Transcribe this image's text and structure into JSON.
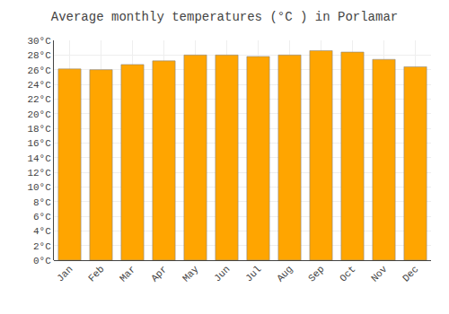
{
  "chart_data": {
    "type": "bar",
    "title": "Average monthly temperatures (°C ) in Porlamar",
    "categories": [
      "Jan",
      "Feb",
      "Mar",
      "Apr",
      "May",
      "Jun",
      "Jul",
      "Aug",
      "Sep",
      "Oct",
      "Nov",
      "Dec"
    ],
    "values": [
      26.1,
      26.0,
      26.7,
      27.2,
      28.0,
      28.0,
      27.8,
      28.0,
      28.6,
      28.4,
      27.4,
      26.4
    ],
    "color": "#FFA500",
    "ylim": [
      0,
      30
    ],
    "yticks": [
      {
        "value": 0,
        "label": "0°C"
      },
      {
        "value": 2,
        "label": "2°C"
      },
      {
        "value": 4,
        "label": "4°C"
      },
      {
        "value": 6,
        "label": "6°C"
      },
      {
        "value": 8,
        "label": "8°C"
      },
      {
        "value": 10,
        "label": "10°C"
      },
      {
        "value": 12,
        "label": "12°C"
      },
      {
        "value": 14,
        "label": "14°C"
      },
      {
        "value": 16,
        "label": "16°C"
      },
      {
        "value": 18,
        "label": "18°C"
      },
      {
        "value": 20,
        "label": "20°C"
      },
      {
        "value": 22,
        "label": "22°C"
      },
      {
        "value": 24,
        "label": "24°C"
      },
      {
        "value": 26,
        "label": "26°C"
      },
      {
        "value": 28,
        "label": "28°C"
      },
      {
        "value": 30,
        "label": "30°C"
      }
    ],
    "grid": true
  }
}
